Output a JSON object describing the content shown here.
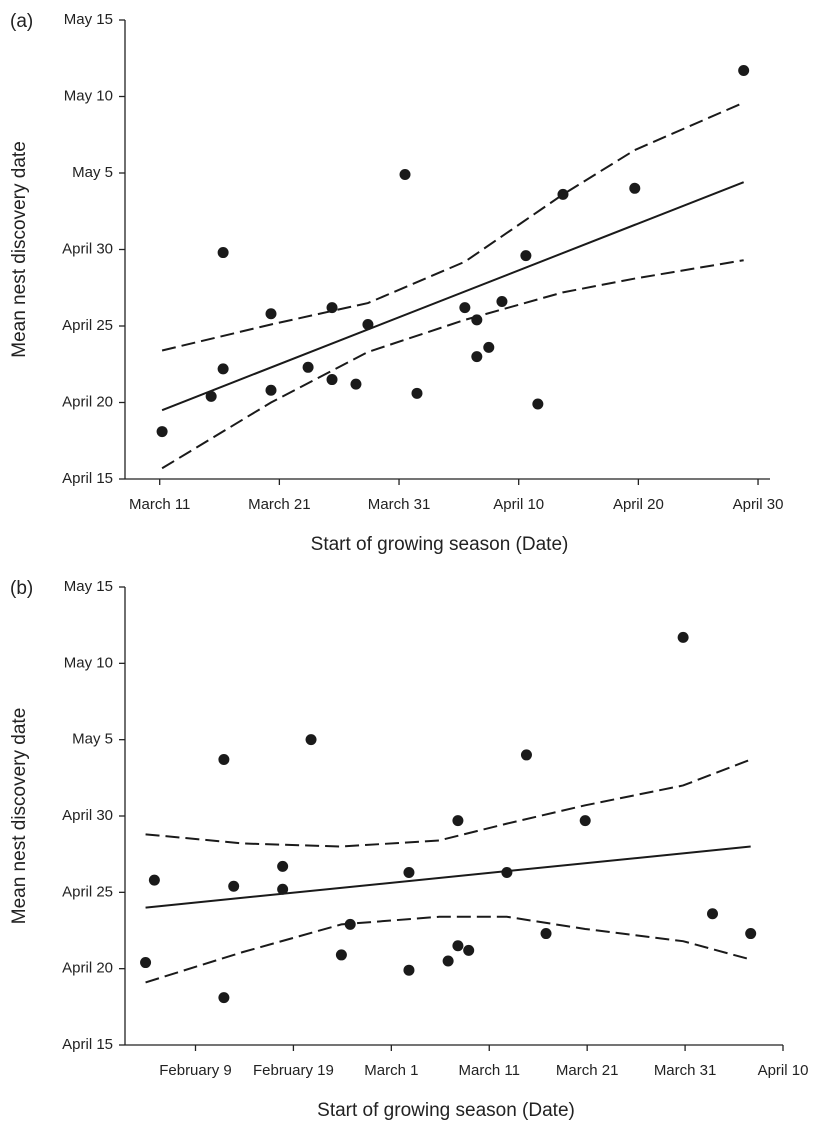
{
  "chart_data": [
    {
      "type": "scatter",
      "panel_label": "(a)",
      "x_label": "Start of growing season (Date)",
      "y_label": "Mean nest discovery date",
      "xlim": [
        67.1,
        121
      ],
      "ylim": [
        105,
        135
      ],
      "xticks": [
        {
          "value": 70,
          "label": "March 11"
        },
        {
          "value": 80,
          "label": "March 21"
        },
        {
          "value": 90,
          "label": "March 31"
        },
        {
          "value": 100,
          "label": "April 10"
        },
        {
          "value": 110,
          "label": "April 20"
        },
        {
          "value": 120,
          "label": "April 30"
        }
      ],
      "yticks": [
        {
          "value": 105,
          "label": "April 15"
        },
        {
          "value": 110,
          "label": "April 20"
        },
        {
          "value": 115,
          "label": "April 25"
        },
        {
          "value": 120,
          "label": "April 30"
        },
        {
          "value": 125,
          "label": "May 5"
        },
        {
          "value": 130,
          "label": "May 10"
        },
        {
          "value": 135,
          "label": "May 15"
        }
      ],
      "color": "#1a1a1a",
      "x": [
        70.2,
        74.3,
        75.3,
        75.3,
        79.3,
        79.3,
        82.4,
        84.4,
        84.4,
        86.4,
        87.4,
        90.5,
        91.5,
        95.5,
        96.5,
        96.5,
        97.5,
        98.6,
        100.6,
        101.6,
        103.7,
        109.7,
        118.8
      ],
      "values": [
        108.1,
        110.4,
        112.2,
        119.8,
        110.8,
        115.8,
        112.3,
        111.5,
        116.2,
        111.2,
        115.1,
        124.9,
        110.6,
        116.2,
        113.0,
        115.4,
        113.6,
        116.6,
        119.6,
        109.9,
        123.6,
        124.0,
        131.7
      ],
      "lines": [
        {
          "dash": false,
          "x": [
            70.2,
            118.8
          ],
          "values": [
            109.5,
            124.4
          ]
        },
        {
          "dash": true,
          "x": [
            70.2,
            79.3,
            87.4,
            95.5,
            103.7,
            109.7,
            118.8
          ],
          "values": [
            113.4,
            115.1,
            116.5,
            119.2,
            123.6,
            126.5,
            129.6
          ]
        },
        {
          "dash": true,
          "x": [
            70.2,
            79.3,
            87.4,
            95.5,
            103.7,
            109.7,
            118.8
          ],
          "values": [
            105.7,
            110.0,
            113.3,
            115.4,
            117.2,
            118.1,
            119.3
          ]
        }
      ]
    },
    {
      "type": "scatter",
      "panel_label": "(b)",
      "x_label": "Start of growing season (Date)",
      "y_label": "Mean nest discovery date",
      "xlim": [
        32.8,
        100
      ],
      "ylim": [
        105,
        135
      ],
      "xticks": [
        {
          "value": 40,
          "label": "February 9"
        },
        {
          "value": 50,
          "label": "February 19"
        },
        {
          "value": 60,
          "label": "March 1"
        },
        {
          "value": 70,
          "label": "March 11"
        },
        {
          "value": 80,
          "label": "March 21"
        },
        {
          "value": 90,
          "label": "March 31"
        },
        {
          "value": 100,
          "label": "April 10"
        }
      ],
      "yticks": [
        {
          "value": 105,
          "label": "April 15"
        },
        {
          "value": 110,
          "label": "April 20"
        },
        {
          "value": 115,
          "label": "April 25"
        },
        {
          "value": 120,
          "label": "April 30"
        },
        {
          "value": 125,
          "label": "May 5"
        },
        {
          "value": 130,
          "label": "May 10"
        },
        {
          "value": 135,
          "label": "May 15"
        }
      ],
      "color": "#1a1a1a",
      "x": [
        34.9,
        35.8,
        42.9,
        42.9,
        43.9,
        48.9,
        48.9,
        51.8,
        54.9,
        55.8,
        61.8,
        61.8,
        65.8,
        66.8,
        66.8,
        67.9,
        71.8,
        73.8,
        75.8,
        79.8,
        89.8,
        92.8,
        96.7
      ],
      "values": [
        110.4,
        115.8,
        123.7,
        108.1,
        115.4,
        116.7,
        115.2,
        125.0,
        110.9,
        112.9,
        116.3,
        109.9,
        110.5,
        119.7,
        111.5,
        111.2,
        116.3,
        124.0,
        112.3,
        119.7,
        131.7,
        113.6,
        112.3
      ],
      "lines": [
        {
          "dash": false,
          "x": [
            34.9,
            96.7
          ],
          "values": [
            114.0,
            118.0
          ]
        },
        {
          "dash": true,
          "x": [
            34.9,
            44.9,
            54.9,
            64.9,
            71.8,
            79.8,
            89.8,
            96.7
          ],
          "values": [
            118.8,
            118.2,
            118.0,
            118.4,
            119.5,
            120.7,
            122.0,
            123.7
          ]
        },
        {
          "dash": true,
          "x": [
            34.9,
            44.9,
            54.9,
            64.9,
            71.8,
            79.8,
            89.8,
            96.7
          ],
          "values": [
            109.1,
            111.1,
            112.9,
            113.4,
            113.4,
            112.6,
            111.8,
            110.6
          ]
        }
      ]
    }
  ]
}
